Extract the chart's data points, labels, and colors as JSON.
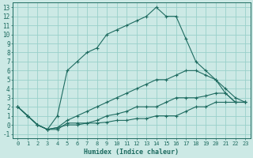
{
  "xlabel": "Humidex (Indice chaleur)",
  "xlim": [
    -0.5,
    23.5
  ],
  "ylim": [
    -1.5,
    13.5
  ],
  "xticks": [
    0,
    1,
    2,
    3,
    4,
    5,
    6,
    7,
    8,
    9,
    10,
    11,
    12,
    13,
    14,
    15,
    16,
    17,
    18,
    19,
    20,
    21,
    22,
    23
  ],
  "yticks": [
    -1,
    0,
    1,
    2,
    3,
    4,
    5,
    6,
    7,
    8,
    9,
    10,
    11,
    12,
    13
  ],
  "bg_color": "#cce9e5",
  "grid_color": "#99d0ca",
  "line_color": "#1e6b60",
  "line1_y": [
    2,
    1,
    0,
    -0.5,
    1,
    6,
    7,
    8,
    8.5,
    10,
    10.5,
    11,
    11.5,
    12,
    13,
    12,
    12,
    9.5,
    7,
    6,
    5,
    3.5,
    2.5,
    2.5
  ],
  "line2_y": [
    2,
    1,
    0,
    -0.5,
    -0.3,
    0,
    0,
    0.2,
    0.5,
    1,
    1.2,
    1.5,
    2,
    2,
    2,
    2.5,
    3,
    3,
    3,
    3.2,
    3.5,
    3.5,
    2.5,
    2.5
  ],
  "line3_y": [
    2,
    1,
    0,
    -0.5,
    -0.3,
    0.5,
    1,
    1.5,
    2,
    2.5,
    3,
    3.5,
    4,
    4.5,
    5,
    5,
    5.5,
    6,
    6,
    5.5,
    5,
    4,
    3,
    2.5
  ],
  "line4_y": [
    2,
    1,
    0,
    -0.5,
    -0.5,
    0.2,
    0.2,
    0.2,
    0.2,
    0.3,
    0.5,
    0.5,
    0.7,
    0.7,
    1,
    1,
    1,
    1.5,
    2,
    2,
    2.5,
    2.5,
    2.5,
    2.5
  ]
}
